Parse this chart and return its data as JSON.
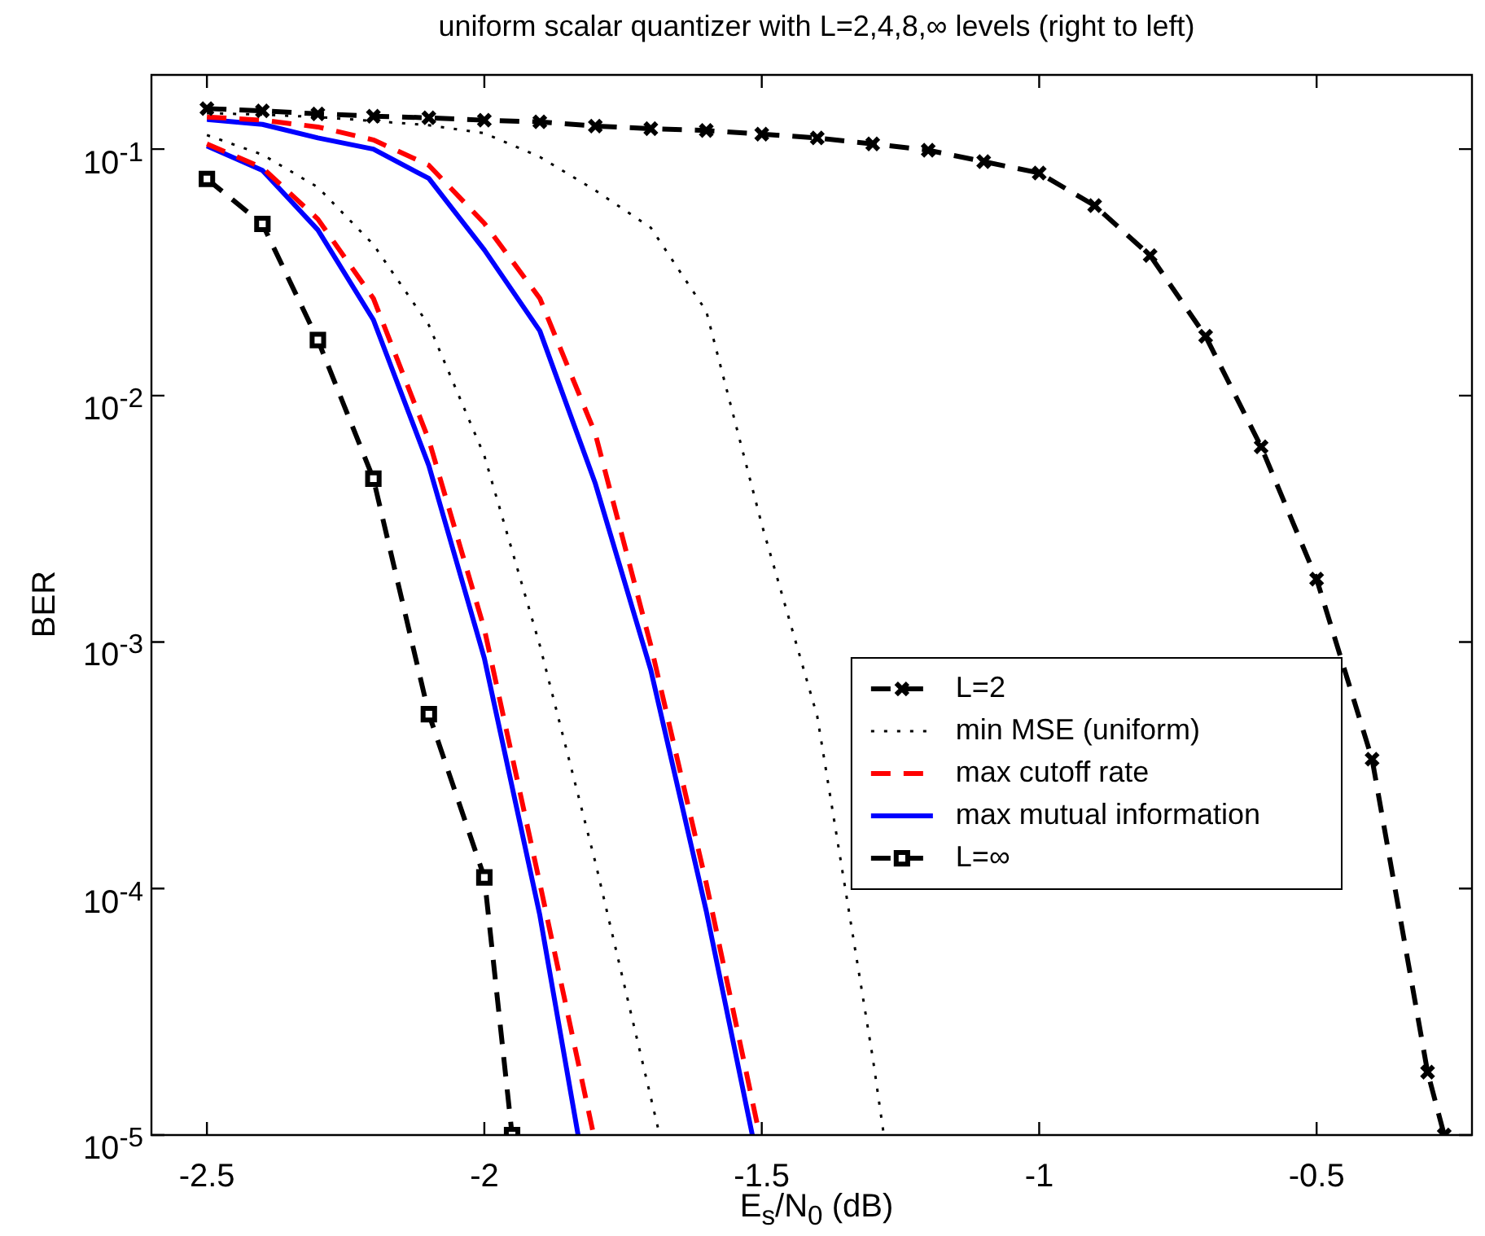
{
  "chart_data": {
    "type": "line",
    "title": "uniform scalar quantizer with L=2,4,8,∞ levels (right to left)",
    "xlabel": "E$_{s}$/N$_{0}$  (dB)",
    "ylabel": "BER",
    "log": "y",
    "grid": false,
    "legend": "right",
    "xlim": [
      -2.6,
      -0.22
    ],
    "xticks": [
      -2.5,
      -2,
      -1.5,
      -1,
      -0.5
    ],
    "ylim": [
      1e-05,
      0.2
    ],
    "yticks": [
      {
        "value": 1e-05,
        "label": "10$^{-5}$"
      },
      {
        "value": 0.0001,
        "label": "10$^{-4}$"
      },
      {
        "value": 0.001,
        "label": "10$^{-3}$"
      },
      {
        "value": 0.01,
        "label": "10$^{-2}$"
      },
      {
        "value": 0.1,
        "label": "10$^{-1}$"
      }
    ],
    "series": [
      {
        "name": "L=2",
        "color": "#000000",
        "line_style": "dashed",
        "marker": "cross",
        "x": [
          -2.5,
          -2.4,
          -2.3,
          -2.2,
          -2.1,
          -2.0,
          -1.9,
          -1.8,
          -1.7,
          -1.6,
          -1.5,
          -1.4,
          -1.3,
          -1.2,
          -1.1,
          -1.0,
          -0.9,
          -0.8,
          -0.7,
          -0.6,
          -0.5,
          -0.4,
          -0.3,
          -0.27
        ],
        "values": [
          0.146,
          0.143,
          0.139,
          0.136,
          0.134,
          0.131,
          0.129,
          0.124,
          0.121,
          0.119,
          0.115,
          0.111,
          0.105,
          0.099,
          0.089,
          0.08,
          0.059,
          0.037,
          0.0174,
          0.0062,
          0.0018,
          0.000335,
          1.8e-05,
          1e-05
        ]
      },
      {
        "name": "min MSE (uniform)",
        "color": "#000000",
        "line_style": "dotted",
        "marker": "none",
        "x": [
          -2.5,
          -2.4,
          -2.3,
          -2.2,
          -2.1,
          -2.0,
          -1.9,
          -1.8,
          -1.684
        ],
        "values": [
          0.114,
          0.095,
          0.07,
          0.041,
          0.0193,
          0.0057,
          0.00097,
          0.000128,
          1e-05
        ]
      },
      {
        "color": "#000000",
        "line_style": "dotted",
        "marker": "none",
        "x": [
          -2.5,
          -2.4,
          -2.3,
          -2.2,
          -2.1,
          -2.0,
          -1.9,
          -1.8,
          -1.7,
          -1.6,
          -1.5,
          -1.4,
          -1.3,
          -1.28
        ],
        "values": [
          0.14,
          0.138,
          0.135,
          0.13,
          0.125,
          0.116,
          0.093,
          0.068,
          0.048,
          0.022,
          0.003,
          0.0005,
          2.06e-05,
          1e-05
        ]
      },
      {
        "name": "max cutoff rate",
        "color": "#ff0000",
        "line_style": "dashed",
        "marker": "none",
        "x": [
          -2.5,
          -2.4,
          -2.3,
          -2.2,
          -2.1,
          -2.0,
          -1.9,
          -1.803
        ],
        "values": [
          0.105,
          0.084,
          0.052,
          0.0248,
          0.0066,
          0.00113,
          0.000105,
          1e-05
        ]
      },
      {
        "color": "#ff0000",
        "line_style": "dashed",
        "marker": "none",
        "x": [
          -2.5,
          -2.4,
          -2.3,
          -2.2,
          -2.1,
          -2.0,
          -1.9,
          -1.8,
          -1.7,
          -1.6,
          -1.504
        ],
        "values": [
          0.135,
          0.131,
          0.123,
          0.109,
          0.086,
          0.05,
          0.0248,
          0.007,
          0.00097,
          0.000105,
          1e-05
        ]
      },
      {
        "name": "max mutual information",
        "color": "#0000ff",
        "line_style": "solid",
        "marker": "none",
        "x": [
          -2.5,
          -2.4,
          -2.3,
          -2.2,
          -2.1,
          -2.0,
          -1.9,
          -1.831
        ],
        "values": [
          0.103,
          0.082,
          0.047,
          0.0203,
          0.0052,
          0.00086,
          7.8e-05,
          1e-05
        ]
      },
      {
        "color": "#0000ff",
        "line_style": "solid",
        "marker": "none",
        "x": [
          -2.5,
          -2.4,
          -2.3,
          -2.2,
          -2.1,
          -2.0,
          -1.9,
          -1.8,
          -1.7,
          -1.6,
          -1.517
        ],
        "values": [
          0.132,
          0.126,
          0.111,
          0.1,
          0.076,
          0.039,
          0.0183,
          0.0044,
          0.00077,
          8.1e-05,
          1e-05
        ]
      },
      {
        "name": "L=∞",
        "color": "#000000",
        "line_style": "dashed",
        "marker": "square",
        "x": [
          -2.5,
          -2.4,
          -2.3,
          -2.2,
          -2.1,
          -2.0,
          -1.95
        ],
        "values": [
          0.0757,
          0.0497,
          0.0168,
          0.0046,
          0.00051,
          0.000111,
          1e-05
        ]
      }
    ]
  }
}
